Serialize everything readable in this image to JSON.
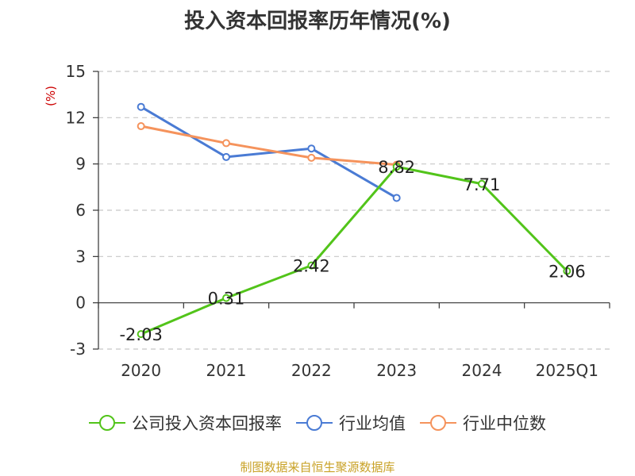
{
  "chart_data": {
    "type": "line",
    "title": "投入资本回报率历年情况(%)",
    "unit": "(%)",
    "categories": [
      "2020",
      "2021",
      "2022",
      "2023",
      "2024",
      "2025Q1"
    ],
    "y_ticks": [
      "15",
      "12",
      "9",
      "6",
      "3",
      "0",
      "-3"
    ],
    "ylim": [
      -3,
      15
    ],
    "grid": true,
    "legend_position": "bottom",
    "series": [
      {
        "name": "公司投入资本回报率",
        "color": "#52c41a",
        "values": [
          -2.03,
          0.31,
          2.42,
          8.82,
          7.71,
          2.06
        ],
        "labels": [
          "-2.03",
          "0.31",
          "2.42",
          "8.82",
          "7.71",
          "2.06"
        ]
      },
      {
        "name": "行业均值",
        "color": "#4a7bd4",
        "values": [
          12.7,
          9.45,
          10.0,
          6.8,
          null,
          null
        ]
      },
      {
        "name": "行业中位数",
        "color": "#f5935c",
        "values": [
          11.45,
          10.35,
          9.4,
          8.95,
          null,
          null
        ]
      }
    ]
  },
  "source": "制图数据来自恒生聚源数据库"
}
